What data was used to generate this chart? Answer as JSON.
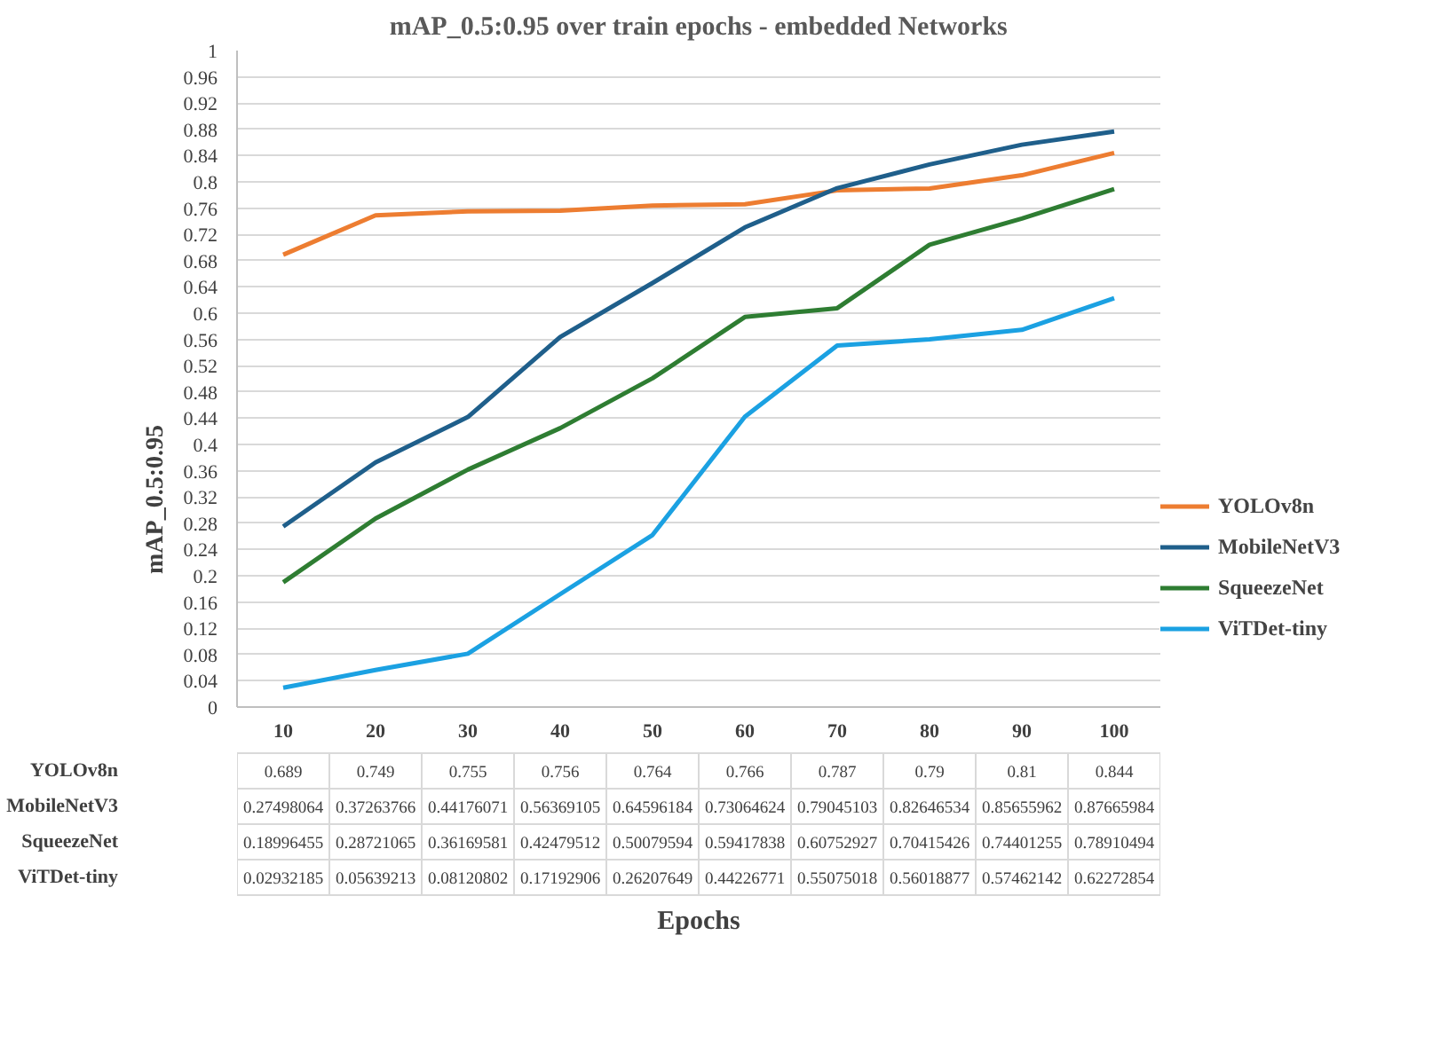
{
  "chart_data": {
    "type": "line",
    "title": "mAP_0.5:0.95 over train epochs - embedded Networks",
    "annotations": [
      "Epochs"
    ],
    "ylabel": "mAP_0.5:0.95",
    "categories": [
      "10",
      "20",
      "30",
      "40",
      "50",
      "60",
      "70",
      "80",
      "90",
      "100"
    ],
    "series": [
      {
        "name": "YOLOv8n",
        "color": "#ed7d31",
        "values": [
          0.689,
          0.749,
          0.755,
          0.756,
          0.764,
          0.766,
          0.787,
          0.79,
          0.81,
          0.844
        ]
      },
      {
        "name": "MobileNetV3",
        "color": "#1f5f8b",
        "values": [
          0.27498064,
          0.37263766,
          0.44176071,
          0.56369105,
          0.64596184,
          0.73064624,
          0.79045103,
          0.82646534,
          0.85655962,
          0.87665984
        ]
      },
      {
        "name": "SqueezeNet",
        "color": "#2e7d32",
        "values": [
          0.18996455,
          0.28721065,
          0.36169581,
          0.42479512,
          0.50079594,
          0.59417838,
          0.60752927,
          0.70415426,
          0.74401255,
          0.78910494
        ]
      },
      {
        "name": "ViTDet-tiny",
        "color": "#1ba1e2",
        "values": [
          0.02932185,
          0.05639213,
          0.08120802,
          0.17192906,
          0.26207649,
          0.44226771,
          0.55075018,
          0.56018877,
          0.57462142,
          0.62272854
        ]
      }
    ],
    "ylim": [
      0,
      1
    ],
    "yticks": [
      0,
      0.04,
      0.08,
      0.12,
      0.16,
      0.2,
      0.24,
      0.28,
      0.32,
      0.36,
      0.4,
      0.44,
      0.48,
      0.52,
      0.56,
      0.6,
      0.64,
      0.68,
      0.72,
      0.76,
      0.8,
      0.84,
      0.88,
      0.92,
      0.96,
      1
    ],
    "grid": "y",
    "legend": "right",
    "data_labels": true,
    "line_style": "solid",
    "marker": "none"
  }
}
